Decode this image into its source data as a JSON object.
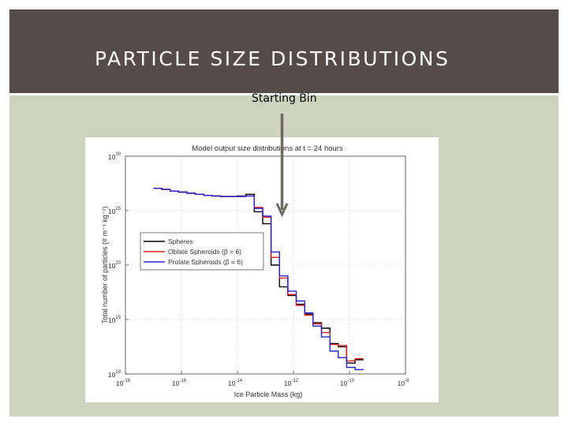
{
  "slide": {
    "title": "PARTICLE SIZE DISTRIBUTIONS",
    "annotation": "Starting Bin"
  },
  "colors": {
    "header_bg": "#554b48",
    "content_bg": "#cdd3bd",
    "arrow": "#6e6a60",
    "spheres": "#000000",
    "oblate": "#e8211c",
    "prolate": "#2323d8"
  },
  "chart_data": {
    "type": "line",
    "title": "Model output size distributions at t = 24 hours",
    "xlabel": "Ice Particle Mass (kg)",
    "ylabel": "Total number of particles (# m⁻¹ kg⁻¹)",
    "xscale": "log",
    "yscale": "log",
    "xlim_exp": [
      -18,
      -8
    ],
    "ylim_exp": [
      10,
      30
    ],
    "x_ticks": [
      {
        "exp": -18,
        "label": "10",
        "sup": "-18"
      },
      {
        "exp": -16,
        "label": "10",
        "sup": "-16"
      },
      {
        "exp": -14,
        "label": "10",
        "sup": "-14"
      },
      {
        "exp": -12,
        "label": "10",
        "sup": "-12"
      },
      {
        "exp": -10,
        "label": "10",
        "sup": "-10"
      },
      {
        "exp": -8,
        "label": "10",
        "sup": "-8"
      }
    ],
    "y_ticks": [
      {
        "exp": 10,
        "label": "10",
        "sup": "10"
      },
      {
        "exp": 15,
        "label": "10",
        "sup": "15"
      },
      {
        "exp": 20,
        "label": "10",
        "sup": "20"
      },
      {
        "exp": 25,
        "label": "10",
        "sup": "25"
      },
      {
        "exp": 30,
        "label": "10",
        "sup": "30"
      }
    ],
    "grid": true,
    "legend_position": "middle-left",
    "bin_edges_exp": [
      -17.0,
      -16.7,
      -16.4,
      -16.1,
      -15.8,
      -15.5,
      -15.2,
      -14.9,
      -14.6,
      -14.3,
      -14.0,
      -13.7,
      -13.4,
      -13.1,
      -12.8,
      -12.5,
      -12.2,
      -11.9,
      -11.6,
      -11.3,
      -11.0,
      -10.7,
      -10.4,
      -10.1,
      -9.8,
      -9.5
    ],
    "series": [
      {
        "name": "Spheres",
        "color": "#000000",
        "values_exp": [
          27.05,
          26.95,
          26.8,
          26.7,
          26.6,
          26.5,
          26.4,
          26.35,
          26.3,
          26.3,
          26.35,
          26.5,
          24.9,
          23.8,
          20.0,
          18.0,
          17.2,
          16.4,
          15.5,
          14.7,
          14.2,
          12.8,
          12.5,
          11.0,
          11.3
        ]
      },
      {
        "name": "Oblate Spheroids (β = 6)",
        "color": "#e8211c",
        "values_exp": [
          27.05,
          26.95,
          26.8,
          26.7,
          26.6,
          26.5,
          26.4,
          26.35,
          26.3,
          26.3,
          26.3,
          26.35,
          25.3,
          24.4,
          20.7,
          18.8,
          17.3,
          16.3,
          15.4,
          14.6,
          13.8,
          12.7,
          12.6,
          11.2,
          11.4
        ]
      },
      {
        "name": "Prolate Spheroids (β = 6)",
        "color": "#2323d8",
        "values_exp": [
          27.05,
          26.95,
          26.8,
          26.7,
          26.6,
          26.5,
          26.4,
          26.35,
          26.3,
          26.3,
          26.3,
          26.35,
          25.2,
          24.5,
          21.2,
          19.0,
          17.6,
          16.7,
          15.6,
          14.4,
          13.4,
          12.1,
          11.5,
          10.6,
          10.4
        ]
      }
    ]
  }
}
